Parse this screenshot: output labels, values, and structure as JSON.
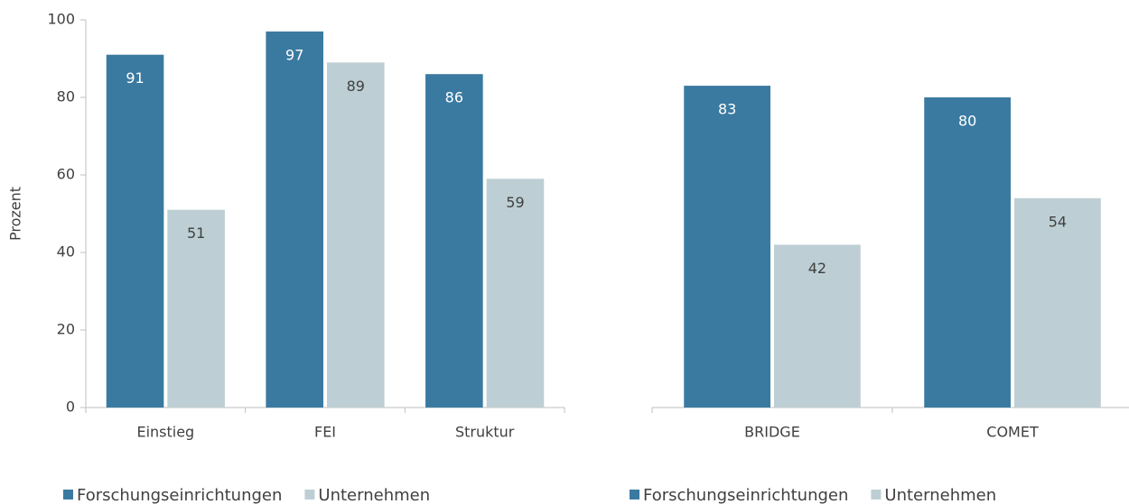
{
  "chart_data": [
    {
      "type": "bar",
      "y_label": "Prozent",
      "categories": [
        "Einstieg",
        "FEI",
        "Struktur"
      ],
      "series": [
        {
          "name": "Forschungseinrichtungen",
          "color": "#3b7aa0",
          "values": [
            91,
            97,
            86
          ]
        },
        {
          "name": "Unternehmen",
          "color": "#bdcfd4",
          "values": [
            51,
            89,
            59
          ]
        }
      ],
      "ylim": [
        0,
        100
      ],
      "yticks": [
        0,
        20,
        40,
        60,
        80,
        100
      ]
    },
    {
      "type": "bar",
      "categories": [
        "BRIDGE",
        "COMET"
      ],
      "series": [
        {
          "name": "Forschungseinrichtungen",
          "color": "#3b7aa0",
          "values": [
            83,
            80
          ]
        },
        {
          "name": "Unternehmen",
          "color": "#bdcfd4",
          "values": [
            42,
            54
          ]
        }
      ],
      "ylim": [
        0,
        100
      ]
    }
  ]
}
